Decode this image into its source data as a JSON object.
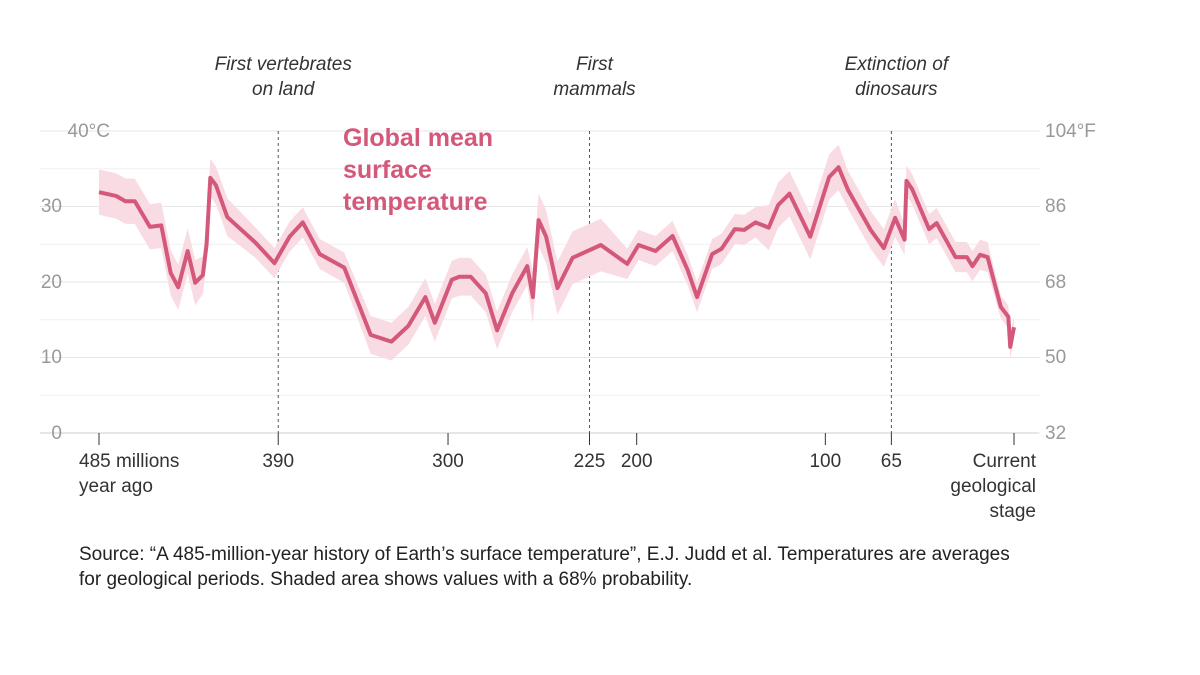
{
  "chart_data": {
    "type": "line",
    "xlim": [
      485,
      0
    ],
    "ylim": [
      0,
      40
    ],
    "y2lim": [
      32,
      104
    ],
    "xticks": [
      {
        "value": 485,
        "label": "485 millions\nyear ago"
      },
      390,
      300,
      225,
      200,
      100,
      65,
      {
        "value": 0,
        "label": "Current\ngeological\nstage"
      }
    ],
    "yticks": [
      0,
      10,
      20,
      30,
      {
        "value": 40,
        "label": "40°C"
      }
    ],
    "minor_yticks": [
      5,
      15,
      25,
      35
    ],
    "y2ticks": [
      32,
      50,
      68,
      86,
      {
        "value": 104,
        "label": "104°F"
      }
    ],
    "grid": true,
    "annotations": [
      {
        "x": 390,
        "text": "First vertebrates\non land"
      },
      {
        "x": 225,
        "text": "First\nmammals"
      },
      {
        "x": 65,
        "text": "Extinction of\ndinosaurs"
      }
    ],
    "x": [
      485,
      476,
      471,
      466,
      458,
      452,
      447,
      443,
      438,
      434,
      430,
      428,
      426,
      423,
      417,
      402,
      392,
      384,
      377,
      368,
      355,
      341,
      330,
      321,
      312,
      307,
      298,
      294,
      288,
      280,
      274,
      266,
      258,
      255,
      252,
      248,
      242,
      234,
      219,
      205,
      199,
      190,
      181,
      173,
      168,
      160,
      155,
      148,
      143,
      137,
      130,
      125,
      119,
      108,
      98,
      93,
      88,
      76,
      69,
      63,
      58,
      57,
      54,
      45,
      41,
      31,
      25,
      22,
      18,
      14,
      7,
      3,
      2,
      0
    ],
    "series": [
      {
        "name": "Global mean\nsurface\ntemperature",
        "color": "#d4587a",
        "band_color": "#f9dbe3",
        "values": [
          31.9,
          31.4,
          30.7,
          30.7,
          27.3,
          27.5,
          21.2,
          19.3,
          24.1,
          19.9,
          20.9,
          24.9,
          33.8,
          32.8,
          28.6,
          25.2,
          22.5,
          26.0,
          27.9,
          23.7,
          21.9,
          13.0,
          12.1,
          14.2,
          18.0,
          14.6,
          20.3,
          20.7,
          20.7,
          18.5,
          13.6,
          18.5,
          22.1,
          18.0,
          28.2,
          26.0,
          19.2,
          23.2,
          24.9,
          22.4,
          24.9,
          24.1,
          26.1,
          21.6,
          18.0,
          23.7,
          24.4,
          27.0,
          26.9,
          27.9,
          27.2,
          30.2,
          31.7,
          26.0,
          33.9,
          35.2,
          32.2,
          26.9,
          24.5,
          28.5,
          25.6,
          33.4,
          32.3,
          27.0,
          27.8,
          23.3,
          23.3,
          22.1,
          23.6,
          23.3,
          16.7,
          15.4,
          11.4,
          14.0
        ],
        "upper": [
          34.9,
          34.4,
          33.7,
          33.7,
          30.3,
          30.5,
          24.2,
          22.3,
          27.1,
          22.9,
          23.4,
          27.4,
          36.3,
          35.3,
          31.1,
          27.2,
          24.5,
          28.0,
          29.9,
          25.7,
          23.9,
          15.5,
          14.6,
          16.7,
          20.5,
          17.1,
          22.8,
          23.2,
          23.2,
          21.0,
          16.1,
          21.0,
          24.6,
          21.5,
          31.7,
          29.5,
          22.7,
          26.7,
          28.4,
          24.4,
          26.9,
          26.1,
          28.1,
          23.6,
          20.0,
          25.7,
          26.4,
          29.0,
          28.9,
          29.9,
          30.2,
          33.2,
          34.7,
          29.0,
          36.9,
          38.2,
          34.7,
          29.4,
          27.0,
          31.0,
          27.6,
          35.4,
          34.3,
          29.0,
          29.8,
          25.3,
          25.3,
          24.1,
          25.6,
          25.3,
          18.2,
          16.9,
          12.9,
          15.5
        ],
        "lower": [
          28.9,
          28.4,
          27.7,
          27.7,
          24.3,
          24.5,
          18.2,
          16.3,
          21.1,
          16.9,
          18.4,
          22.4,
          31.3,
          30.3,
          26.1,
          23.2,
          20.5,
          24.0,
          25.9,
          21.7,
          19.9,
          10.5,
          9.6,
          11.7,
          15.5,
          12.1,
          17.8,
          18.2,
          18.2,
          16.0,
          11.1,
          16.0,
          19.6,
          14.5,
          24.7,
          22.5,
          15.7,
          19.7,
          21.4,
          20.4,
          22.9,
          22.1,
          24.1,
          19.6,
          16.0,
          21.7,
          22.4,
          25.0,
          24.9,
          25.9,
          24.2,
          27.2,
          28.7,
          23.0,
          30.9,
          32.2,
          29.7,
          24.4,
          22.0,
          26.0,
          23.6,
          31.4,
          30.3,
          25.0,
          25.8,
          21.3,
          21.3,
          20.1,
          21.6,
          21.3,
          15.2,
          13.9,
          9.9,
          12.5
        ]
      }
    ],
    "source": "Source: “A 485-million-year history of Earth’s surface temperature”, E.J. Judd et al. Temperatures are averages for geological periods. Shaded area shows values with a 68% probability."
  }
}
